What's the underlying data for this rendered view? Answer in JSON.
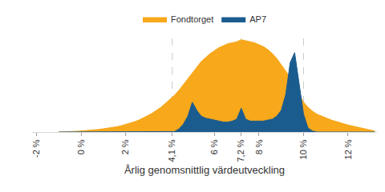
{
  "chart_data": {
    "type": "area",
    "x_label": "Årlig genomsnittlig värdeutveckling",
    "x": [
      -1.0,
      -0.8,
      -0.6,
      -0.4,
      -0.2,
      0.0,
      0.2,
      0.4,
      0.6,
      0.8,
      1.0,
      1.2,
      1.4,
      1.6,
      1.8,
      2.0,
      2.2,
      2.4,
      2.6,
      2.8,
      3.0,
      3.2,
      3.4,
      3.6,
      3.8,
      4.0,
      4.2,
      4.4,
      4.6,
      4.8,
      5.0,
      5.2,
      5.4,
      5.6,
      5.8,
      6.0,
      6.2,
      6.4,
      6.6,
      6.8,
      7.0,
      7.2,
      7.4,
      7.6,
      7.8,
      8.0,
      8.2,
      8.4,
      8.6,
      8.8,
      9.0,
      9.2,
      9.4,
      9.6,
      9.8,
      10.0,
      10.2,
      10.4,
      10.6,
      10.8,
      11.0,
      11.2,
      11.4,
      11.6,
      11.8,
      12.0,
      12.2,
      12.4,
      12.6,
      12.8,
      13.0,
      13.2
    ],
    "series": [
      {
        "name": "Fondtorget",
        "color": "#F7A81B",
        "values": [
          0,
          0,
          0.3,
          0.5,
          0.7,
          1,
          1.3,
          1.7,
          2.1,
          2.6,
          3.2,
          3.8,
          4.5,
          5.3,
          6.3,
          7.5,
          8.8,
          10.3,
          12,
          14,
          16.5,
          19,
          22,
          25,
          29,
          33,
          37,
          42,
          48,
          54,
          60,
          66,
          71,
          75,
          79,
          82,
          85,
          87,
          89,
          90,
          91,
          93,
          92,
          91,
          90,
          88,
          86,
          83,
          79,
          74,
          68,
          62,
          55,
          47,
          38,
          30,
          25,
          21,
          18,
          16,
          14,
          12.5,
          11,
          9.5,
          8.3,
          7,
          6,
          5,
          4,
          3,
          2,
          1
        ]
      },
      {
        "name": "AP7",
        "color": "#1B5C8F",
        "values": [
          0,
          0,
          0,
          0,
          0,
          0,
          0,
          0,
          0,
          0,
          0,
          0,
          0,
          0,
          0,
          0,
          0,
          0,
          0,
          0,
          0,
          0,
          0,
          0,
          0,
          0,
          0.5,
          3,
          8,
          16,
          30,
          22,
          16,
          14,
          13,
          12,
          11,
          10,
          10,
          11,
          13,
          24,
          13,
          11,
          11,
          11,
          11,
          12,
          13,
          16,
          22,
          38,
          70,
          80,
          50,
          18,
          4,
          1,
          0,
          0,
          0,
          0,
          0,
          0,
          0,
          0,
          0,
          0,
          0,
          0,
          0,
          0
        ]
      }
    ],
    "xlim": [
      -2.2,
      13.3
    ],
    "ylim": [
      0,
      100
    ],
    "xticks": [
      {
        "value": -2,
        "label": "-2 %"
      },
      {
        "value": 0,
        "label": "0 %"
      },
      {
        "value": 2,
        "label": "2 %"
      },
      {
        "value": 4.1,
        "label": "4,1 %"
      },
      {
        "value": 6,
        "label": "6 %"
      },
      {
        "value": 7.2,
        "label": "7,2 %"
      },
      {
        "value": 8,
        "label": "8 %"
      },
      {
        "value": 10,
        "label": "10 %"
      },
      {
        "value": 12,
        "label": "12 %"
      }
    ],
    "vlines": [
      4.1,
      7.2,
      10
    ],
    "tick_labels": "x",
    "grid": false,
    "legend": "top"
  }
}
